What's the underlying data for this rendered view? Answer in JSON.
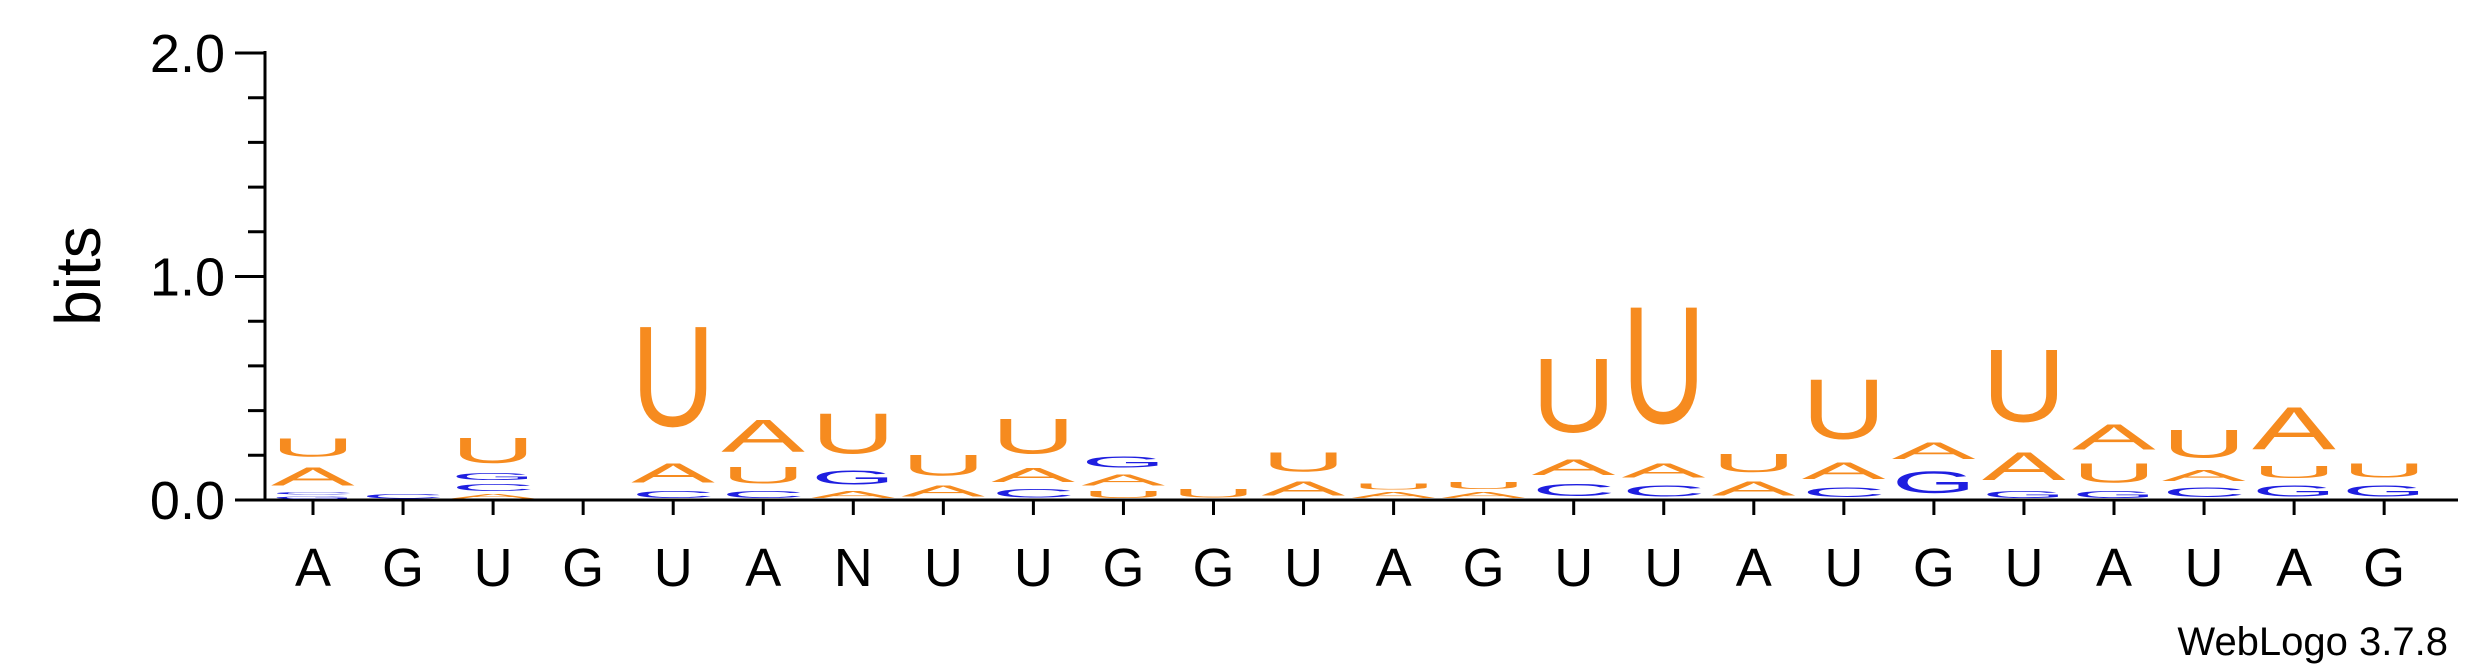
{
  "chart_data": {
    "type": "sequence-logo",
    "ylabel": "bits",
    "ylim": [
      0,
      2.0
    ],
    "yticks": [
      "0.0",
      "1.0",
      "2.0"
    ],
    "footer": "WebLogo 3.7.8",
    "colors": {
      "U": "#f68b1f",
      "A": "#f68b1f",
      "G": "#1f1fe0",
      "C": "#1f1fe0"
    },
    "positions": [
      {
        "label": "A",
        "stack": [
          {
            "letter": "G",
            "bits": 0.02
          },
          {
            "letter": "C",
            "bits": 0.02
          },
          {
            "letter": "A",
            "bits": 0.13
          },
          {
            "letter": "U",
            "bits": 0.13
          }
        ]
      },
      {
        "label": "G",
        "stack": [
          {
            "letter": "C",
            "bits": 0.03
          }
        ]
      },
      {
        "label": "U",
        "stack": [
          {
            "letter": "A",
            "bits": 0.03
          },
          {
            "letter": "C",
            "bits": 0.05
          },
          {
            "letter": "G",
            "bits": 0.05
          },
          {
            "letter": "U",
            "bits": 0.18
          }
        ]
      },
      {
        "label": "G",
        "stack": []
      },
      {
        "label": "U",
        "stack": [
          {
            "letter": "C",
            "bits": 0.05
          },
          {
            "letter": "A",
            "bits": 0.14
          },
          {
            "letter": "U",
            "bits": 0.72
          }
        ]
      },
      {
        "label": "A",
        "stack": [
          {
            "letter": "C",
            "bits": 0.05
          },
          {
            "letter": "U",
            "bits": 0.12
          },
          {
            "letter": "A",
            "bits": 0.23
          }
        ]
      },
      {
        "label": "N",
        "stack": [
          {
            "letter": "A",
            "bits": 0.05
          },
          {
            "letter": "G",
            "bits": 0.1
          },
          {
            "letter": "U",
            "bits": 0.29
          }
        ]
      },
      {
        "label": "U",
        "stack": [
          {
            "letter": "A",
            "bits": 0.08
          },
          {
            "letter": "U",
            "bits": 0.15
          }
        ]
      },
      {
        "label": "U",
        "stack": [
          {
            "letter": "C",
            "bits": 0.06
          },
          {
            "letter": "A",
            "bits": 0.1
          },
          {
            "letter": "U",
            "bits": 0.25
          }
        ]
      },
      {
        "label": "G",
        "stack": [
          {
            "letter": "U",
            "bits": 0.05
          },
          {
            "letter": "A",
            "bits": 0.08
          },
          {
            "letter": "G",
            "bits": 0.08
          }
        ]
      },
      {
        "label": "G",
        "stack": [
          {
            "letter": "U",
            "bits": 0.06
          }
        ]
      },
      {
        "label": "U",
        "stack": [
          {
            "letter": "A",
            "bits": 0.1
          },
          {
            "letter": "U",
            "bits": 0.14
          }
        ]
      },
      {
        "label": "A",
        "stack": [
          {
            "letter": "A",
            "bits": 0.04
          },
          {
            "letter": "U",
            "bits": 0.04
          }
        ]
      },
      {
        "label": "G",
        "stack": [
          {
            "letter": "A",
            "bits": 0.04
          },
          {
            "letter": "U",
            "bits": 0.05
          }
        ]
      },
      {
        "label": "U",
        "stack": [
          {
            "letter": "C",
            "bits": 0.09
          },
          {
            "letter": "A",
            "bits": 0.11
          },
          {
            "letter": "U",
            "bits": 0.53
          }
        ]
      },
      {
        "label": "U",
        "stack": [
          {
            "letter": "C",
            "bits": 0.08
          },
          {
            "letter": "A",
            "bits": 0.1
          },
          {
            "letter": "U",
            "bits": 0.84
          }
        ]
      },
      {
        "label": "A",
        "stack": [
          {
            "letter": "A",
            "bits": 0.1
          },
          {
            "letter": "U",
            "bits": 0.13
          }
        ]
      },
      {
        "label": "U",
        "stack": [
          {
            "letter": "C",
            "bits": 0.07
          },
          {
            "letter": "A",
            "bits": 0.12
          },
          {
            "letter": "U",
            "bits": 0.43
          }
        ]
      },
      {
        "label": "G",
        "stack": [
          {
            "letter": "G",
            "bits": 0.16
          },
          {
            "letter": "A",
            "bits": 0.12
          }
        ]
      },
      {
        "label": "U",
        "stack": [
          {
            "letter": "G",
            "bits": 0.05
          },
          {
            "letter": "A",
            "bits": 0.2
          },
          {
            "letter": "U",
            "bits": 0.52
          }
        ]
      },
      {
        "label": "A",
        "stack": [
          {
            "letter": "G",
            "bits": 0.05
          },
          {
            "letter": "U",
            "bits": 0.14
          },
          {
            "letter": "A",
            "bits": 0.18
          }
        ]
      },
      {
        "label": "U",
        "stack": [
          {
            "letter": "C",
            "bits": 0.07
          },
          {
            "letter": "A",
            "bits": 0.08
          },
          {
            "letter": "U",
            "bits": 0.2
          }
        ]
      },
      {
        "label": "A",
        "stack": [
          {
            "letter": "G",
            "bits": 0.08
          },
          {
            "letter": "U",
            "bits": 0.09
          },
          {
            "letter": "A",
            "bits": 0.3
          }
        ]
      },
      {
        "label": "G",
        "stack": [
          {
            "letter": "G",
            "bits": 0.08
          },
          {
            "letter": "U",
            "bits": 0.1
          }
        ]
      }
    ]
  }
}
